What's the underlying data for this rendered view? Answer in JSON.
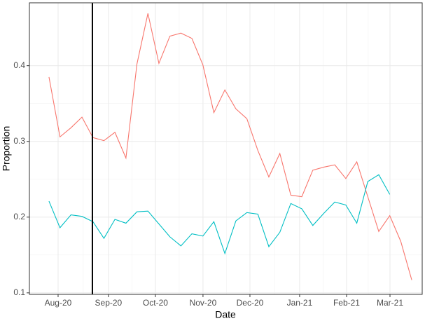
{
  "chart_data": {
    "type": "line",
    "x_label": "Date",
    "y_label": "Proportion",
    "x": [
      0,
      1,
      2,
      3,
      4,
      5,
      6,
      7,
      8,
      9,
      10,
      11,
      12,
      13,
      14,
      15,
      16,
      17,
      18,
      19,
      20,
      21,
      22,
      23,
      24,
      25,
      26,
      27,
      28,
      29,
      30,
      31,
      32,
      33
    ],
    "series": [
      {
        "color": "#F8766D",
        "values": [
          0.385,
          0.306,
          0.318,
          0.332,
          0.305,
          0.301,
          0.312,
          0.278,
          0.402,
          0.469,
          0.403,
          0.439,
          0.443,
          0.436,
          0.401,
          0.338,
          0.368,
          0.343,
          0.33,
          0.288,
          0.253,
          0.284,
          0.229,
          0.227,
          0.262,
          0.266,
          0.269,
          0.251,
          0.273,
          0.227,
          0.181,
          0.202,
          0.168,
          0.117
        ]
      },
      {
        "color": "#00BFC4",
        "values": [
          0.221,
          0.186,
          0.203,
          0.201,
          0.194,
          0.172,
          0.197,
          0.192,
          0.207,
          0.208,
          0.191,
          0.174,
          0.162,
          0.178,
          0.175,
          0.194,
          0.152,
          0.195,
          0.206,
          0.204,
          0.161,
          0.18,
          0.218,
          0.211,
          0.189,
          0.205,
          0.22,
          0.216,
          0.192,
          0.247,
          0.256,
          0.23,
          null,
          null
        ]
      }
    ],
    "vline": 3.95,
    "xlim": [
      -1.78,
      33.95
    ],
    "xticks": [
      {
        "value": 0.83,
        "label": "Aug-20"
      },
      {
        "value": 5.41,
        "label": "Sep-20"
      },
      {
        "value": 9.68,
        "label": "Oct-20"
      },
      {
        "value": 14.01,
        "label": "Nov-20"
      },
      {
        "value": 18.28,
        "label": "Dec-20"
      },
      {
        "value": 22.8,
        "label": "Jan-21"
      },
      {
        "value": 27.07,
        "label": "Feb-21"
      },
      {
        "value": 31.02,
        "label": "Mar-21"
      }
    ],
    "ylim": [
      0.098,
      0.483
    ],
    "yticks": [
      0.1,
      0.2,
      0.3,
      0.4
    ],
    "grid": true
  }
}
